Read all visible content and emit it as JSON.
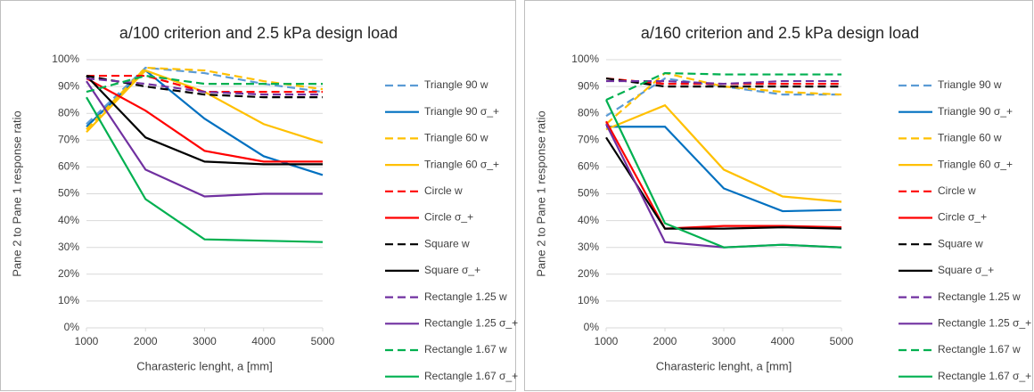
{
  "chart_data": [
    {
      "type": "line",
      "title": "a/100 criterion and 2.5 kPa design load",
      "x_label": "Charasteric lenght, a [mm]",
      "y_label": "Pane 2 to Pane 1 response ratio",
      "x": [
        1000,
        2000,
        3000,
        4000,
        5000
      ],
      "xlim": [
        1000,
        5000
      ],
      "xticks": [
        1000,
        2000,
        3000,
        4000,
        5000
      ],
      "ylim": [
        0,
        100
      ],
      "yticks": [
        {
          "value": 0,
          "label": "0%"
        },
        {
          "value": 10,
          "label": "10%"
        },
        {
          "value": 20,
          "label": "20%"
        },
        {
          "value": 30,
          "label": "30%"
        },
        {
          "value": 40,
          "label": "40%"
        },
        {
          "value": 50,
          "label": "50%"
        },
        {
          "value": 60,
          "label": "60%"
        },
        {
          "value": 70,
          "label": "70%"
        },
        {
          "value": 80,
          "label": "80%"
        },
        {
          "value": 90,
          "label": "90%"
        },
        {
          "value": 100,
          "label": "100%"
        }
      ],
      "grid": true,
      "legend": "right",
      "series": [
        {
          "name": "Triangle 90 w",
          "color": "#5b9bd5",
          "style": "dashed",
          "values": [
            76,
            97,
            95,
            91,
            88
          ]
        },
        {
          "name": "Triangle 90 σ_+",
          "color": "#0070c0",
          "style": "solid",
          "values": [
            75,
            96,
            78,
            64,
            57
          ]
        },
        {
          "name": "Triangle 60 w",
          "color": "#ffc000",
          "style": "dashed",
          "values": [
            74,
            97,
            96,
            92,
            89
          ]
        },
        {
          "name": "Triangle 60 σ_+",
          "color": "#ffc000",
          "style": "solid",
          "values": [
            73,
            96,
            88,
            76,
            69
          ]
        },
        {
          "name": "Circle w",
          "color": "#ff0000",
          "style": "dashed",
          "values": [
            94,
            94,
            88,
            88,
            88
          ]
        },
        {
          "name": "Circle σ_+",
          "color": "#ff0000",
          "style": "solid",
          "values": [
            93,
            81,
            66,
            62,
            62
          ]
        },
        {
          "name": "Square w",
          "color": "#000000",
          "style": "dashed",
          "values": [
            94,
            90,
            87,
            86,
            86
          ]
        },
        {
          "name": "Square σ_+",
          "color": "#000000",
          "style": "solid",
          "values": [
            94,
            71,
            62,
            61,
            61
          ]
        },
        {
          "name": "Rectangle 1.25 w",
          "color": "#7030a0",
          "style": "dashed",
          "values": [
            93,
            91,
            88,
            87,
            87
          ]
        },
        {
          "name": "Rectangle 1.25 σ_+",
          "color": "#7030a0",
          "style": "solid",
          "values": [
            92,
            59,
            49,
            50,
            50
          ]
        },
        {
          "name": "Rectangle 1.67 w",
          "color": "#00b050",
          "style": "dashed",
          "values": [
            88,
            94,
            91,
            91,
            91
          ]
        },
        {
          "name": "Rectangle 1.67 σ_+",
          "color": "#00b050",
          "style": "solid",
          "values": [
            86,
            48,
            33,
            32.5,
            32
          ]
        }
      ]
    },
    {
      "type": "line",
      "title": "a/160 criterion and 2.5 kPa design load",
      "x_label": "Charasteric lenght, a [mm]",
      "y_label": "Pane 2 to Pane 1 response ratio",
      "x": [
        1000,
        2000,
        3000,
        4000,
        5000
      ],
      "xlim": [
        1000,
        5000
      ],
      "xticks": [
        1000,
        2000,
        3000,
        4000,
        5000
      ],
      "ylim": [
        0,
        100
      ],
      "yticks": [
        {
          "value": 0,
          "label": "0%"
        },
        {
          "value": 10,
          "label": "10%"
        },
        {
          "value": 20,
          "label": "20%"
        },
        {
          "value": 30,
          "label": "30%"
        },
        {
          "value": 40,
          "label": "40%"
        },
        {
          "value": 50,
          "label": "50%"
        },
        {
          "value": 60,
          "label": "60%"
        },
        {
          "value": 70,
          "label": "70%"
        },
        {
          "value": 80,
          "label": "80%"
        },
        {
          "value": 90,
          "label": "90%"
        },
        {
          "value": 100,
          "label": "100%"
        }
      ],
      "grid": true,
      "legend": "right",
      "series": [
        {
          "name": "Triangle 90 w",
          "color": "#5b9bd5",
          "style": "dashed",
          "values": [
            79,
            93,
            90,
            87,
            87
          ]
        },
        {
          "name": "Triangle 90 σ_+",
          "color": "#0070c0",
          "style": "solid",
          "values": [
            75,
            75,
            52,
            43.5,
            44
          ]
        },
        {
          "name": "Triangle 60 w",
          "color": "#ffc000",
          "style": "dashed",
          "values": [
            76,
            95,
            90,
            88,
            87
          ]
        },
        {
          "name": "Triangle 60 σ_+",
          "color": "#ffc000",
          "style": "solid",
          "values": [
            74,
            83,
            59,
            49,
            47
          ]
        },
        {
          "name": "Circle w",
          "color": "#ff0000",
          "style": "dashed",
          "values": [
            93,
            91,
            91,
            91,
            91
          ]
        },
        {
          "name": "Circle σ_+",
          "color": "#ff0000",
          "style": "solid",
          "values": [
            77,
            37,
            38,
            38,
            37.5
          ]
        },
        {
          "name": "Square w",
          "color": "#000000",
          "style": "dashed",
          "values": [
            93,
            90,
            90,
            90,
            90
          ]
        },
        {
          "name": "Square σ_+",
          "color": "#000000",
          "style": "solid",
          "values": [
            71,
            37,
            37,
            37.5,
            37
          ]
        },
        {
          "name": "Rectangle 1.25 w",
          "color": "#7030a0",
          "style": "dashed",
          "values": [
            92,
            92,
            91,
            92,
            92
          ]
        },
        {
          "name": "Rectangle 1.25 σ_+",
          "color": "#7030a0",
          "style": "solid",
          "values": [
            76,
            32,
            30,
            31,
            30
          ]
        },
        {
          "name": "Rectangle 1.67 w",
          "color": "#00b050",
          "style": "dashed",
          "values": [
            85,
            95,
            94.5,
            94.5,
            94.5
          ]
        },
        {
          "name": "Rectangle 1.67 σ_+",
          "color": "#00b050",
          "style": "solid",
          "values": [
            85,
            39,
            30,
            31,
            30
          ]
        }
      ]
    }
  ]
}
